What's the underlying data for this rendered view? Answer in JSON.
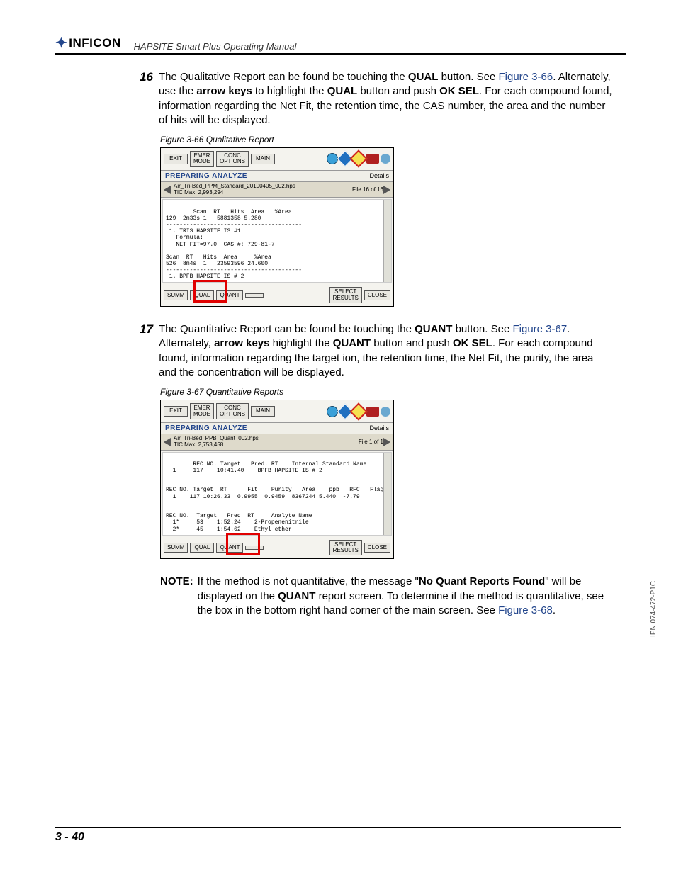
{
  "header": {
    "brand": "INFICON",
    "manual_title": "HAPSITE Smart Plus Operating Manual"
  },
  "page_number": "3 - 40",
  "side_ipn": "IPN 074-472-P1C",
  "steps": [
    {
      "num": "16",
      "body_html": "The Qualitative Report can be found be touching the <b>QUAL</b> button. See <span class='link'>Figure 3-66</span>. Alternately, use the <b>arrow keys</b> to highlight the <b>QUAL</b> button and push <b>OK SEL</b>. For each compound found, information regarding the Net Fit, the retention time, the CAS number, the area and the number of hits will be displayed."
    },
    {
      "num": "17",
      "body_html": "The Quantitative Report can be found be touching the <b>QUANT</b> button. See <span class='link'>Figure 3-67</span>. Alternately, <b>arrow keys</b> highlight the <b>QUANT</b> button and push <b>OK SEL</b>. For each compound found, information regarding the target ion, the retention time, the Net Fit, the purity, the area and the concentration will be displayed."
    }
  ],
  "note": {
    "label": "NOTE:",
    "body_html": "If the method is not quantitative, the message \"<b>No Quant Reports Found</b>\" will be displayed on the <b>QUANT</b> report screen. To determine if the method is quantitative, see the box in the bottom right hand corner of the main screen. See <span class='link'>Figure 3-68</span>."
  },
  "figures": {
    "f66": {
      "caption": "Figure 3-66  Qualitative Report",
      "top_buttons": [
        "EXIT",
        "EMER\nMODE",
        "CONC\nOPTIONS",
        "MAIN"
      ],
      "icon_colors": {
        "help": "#3aa0d8",
        "info": "#2070c0",
        "diamond_border": "#d02020",
        "diamond_fill": "#f5e050",
        "battery": "#b02020",
        "tri": "#2a8a2a",
        "globe": "#6aa8d0"
      },
      "status_left": "PREPARING ANALYZE",
      "status_right": "Details",
      "file_name": "Air_Tri-Bed_PPM_Standard_20100405_002.hps",
      "tic_max": "TIC Max: 2,993,294",
      "file_count": "File 16 of 16",
      "data_text": "Scan  RT   Hits  Area   %Area\n129  2m33s 1   5881358 5.280\n----------------------------------------\n 1. TRIS HAPSITE IS #1\n   Formula:\n   NET FIT=97.0  CAS #: 729-81-7\n\nScan  RT   Hits  Area     %Area\n526  8m4s  1   23593596 24.600\n----------------------------------------\n 1. BPFB HAPSITE IS # 2",
      "bottom_buttons": [
        "SUMM",
        "QUAL",
        "QUANT",
        "",
        "SELECT\nRESULTS",
        "CLOSE"
      ],
      "highlight_index": 1
    },
    "f67": {
      "caption": "Figure 3-67  Quantitative Reports",
      "top_buttons": [
        "EXIT",
        "EMER\nMODE",
        "CONC\nOPTIONS",
        "MAIN"
      ],
      "status_left": "PREPARING ANALYZE",
      "status_right": "Details",
      "file_name": "Air_Tri-Bed_PPB_Quant_002.hps",
      "tic_max": "TIC Max: 2,753,458",
      "file_count": "File 1 of 1",
      "data_text": "REC NO. Target   Pred. RT    Internal Standard Name\n  1     117    10:41.40    BPFB HAPSITE IS # 2\n\n\nREC NO. Target  RT      Fit    Purity   Area    ppb   RFC   Flag\n  1    117 10:26.33  0.9955  0.9459  8367244 5.440  -7.79\n\n\nREC NO.  Target   Pred  RT     Analyte Name\n  1*     53    1:52.24    2-Propenenitrile\n  2*     45    1:54.62    Ethyl ether",
      "bottom_buttons": [
        "SUMM",
        "QUAL",
        "QUANT",
        "",
        "SELECT\nRESULTS",
        "CLOSE"
      ],
      "highlight_index": 2
    }
  }
}
